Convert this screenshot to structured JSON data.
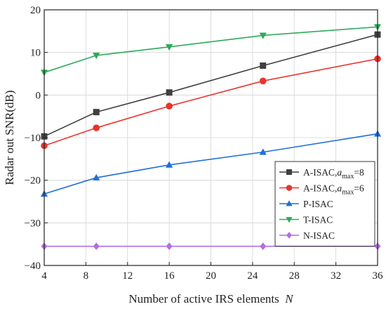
{
  "chart_data": {
    "type": "line",
    "title": "",
    "xlabel": "Number of active IRS elements",
    "xlabel_var": "N",
    "ylabel": "Radar out SNR(dB)",
    "xlim": [
      4,
      36
    ],
    "ylim": [
      -40,
      20
    ],
    "xticks": [
      4,
      8,
      12,
      16,
      20,
      24,
      28,
      32,
      36
    ],
    "yticks": [
      -40,
      -30,
      -20,
      -10,
      0,
      10,
      20
    ],
    "grid": true,
    "legend_position": "lower-right",
    "x": [
      4,
      9,
      16,
      25,
      36
    ],
    "series": [
      {
        "name": "A-ISAC,a_max=8",
        "label_main": "A-ISAC,",
        "label_var": "a",
        "label_sub": "max",
        "label_tail": "=8",
        "color": "#404040",
        "marker": "square",
        "values": [
          -9.7,
          -4.0,
          0.6,
          6.9,
          14.2
        ]
      },
      {
        "name": "A-ISAC,a_max=6",
        "label_main": "A-ISAC,",
        "label_var": "a",
        "label_sub": "max",
        "label_tail": "=6",
        "color": "#e8342c",
        "marker": "circle",
        "values": [
          -11.9,
          -7.7,
          -2.6,
          3.3,
          8.5
        ]
      },
      {
        "name": "P-ISAC",
        "label_main": "P-ISAC",
        "label_var": "",
        "label_sub": "",
        "label_tail": "",
        "color": "#1f6fd6",
        "marker": "triangle-up",
        "values": [
          -23.2,
          -19.4,
          -16.4,
          -13.4,
          -9.1
        ]
      },
      {
        "name": "T-ISAC",
        "label_main": "T-ISAC",
        "label_var": "",
        "label_sub": "",
        "label_tail": "",
        "color": "#2eaa5c",
        "marker": "triangle-down",
        "values": [
          5.3,
          9.3,
          11.3,
          14.0,
          16.0
        ]
      },
      {
        "name": "N-ISAC",
        "label_main": "N-ISAC",
        "label_var": "",
        "label_sub": "",
        "label_tail": "",
        "color": "#b06fe0",
        "marker": "diamond",
        "values": [
          -35.5,
          -35.5,
          -35.5,
          -35.5,
          -35.5
        ]
      }
    ]
  }
}
